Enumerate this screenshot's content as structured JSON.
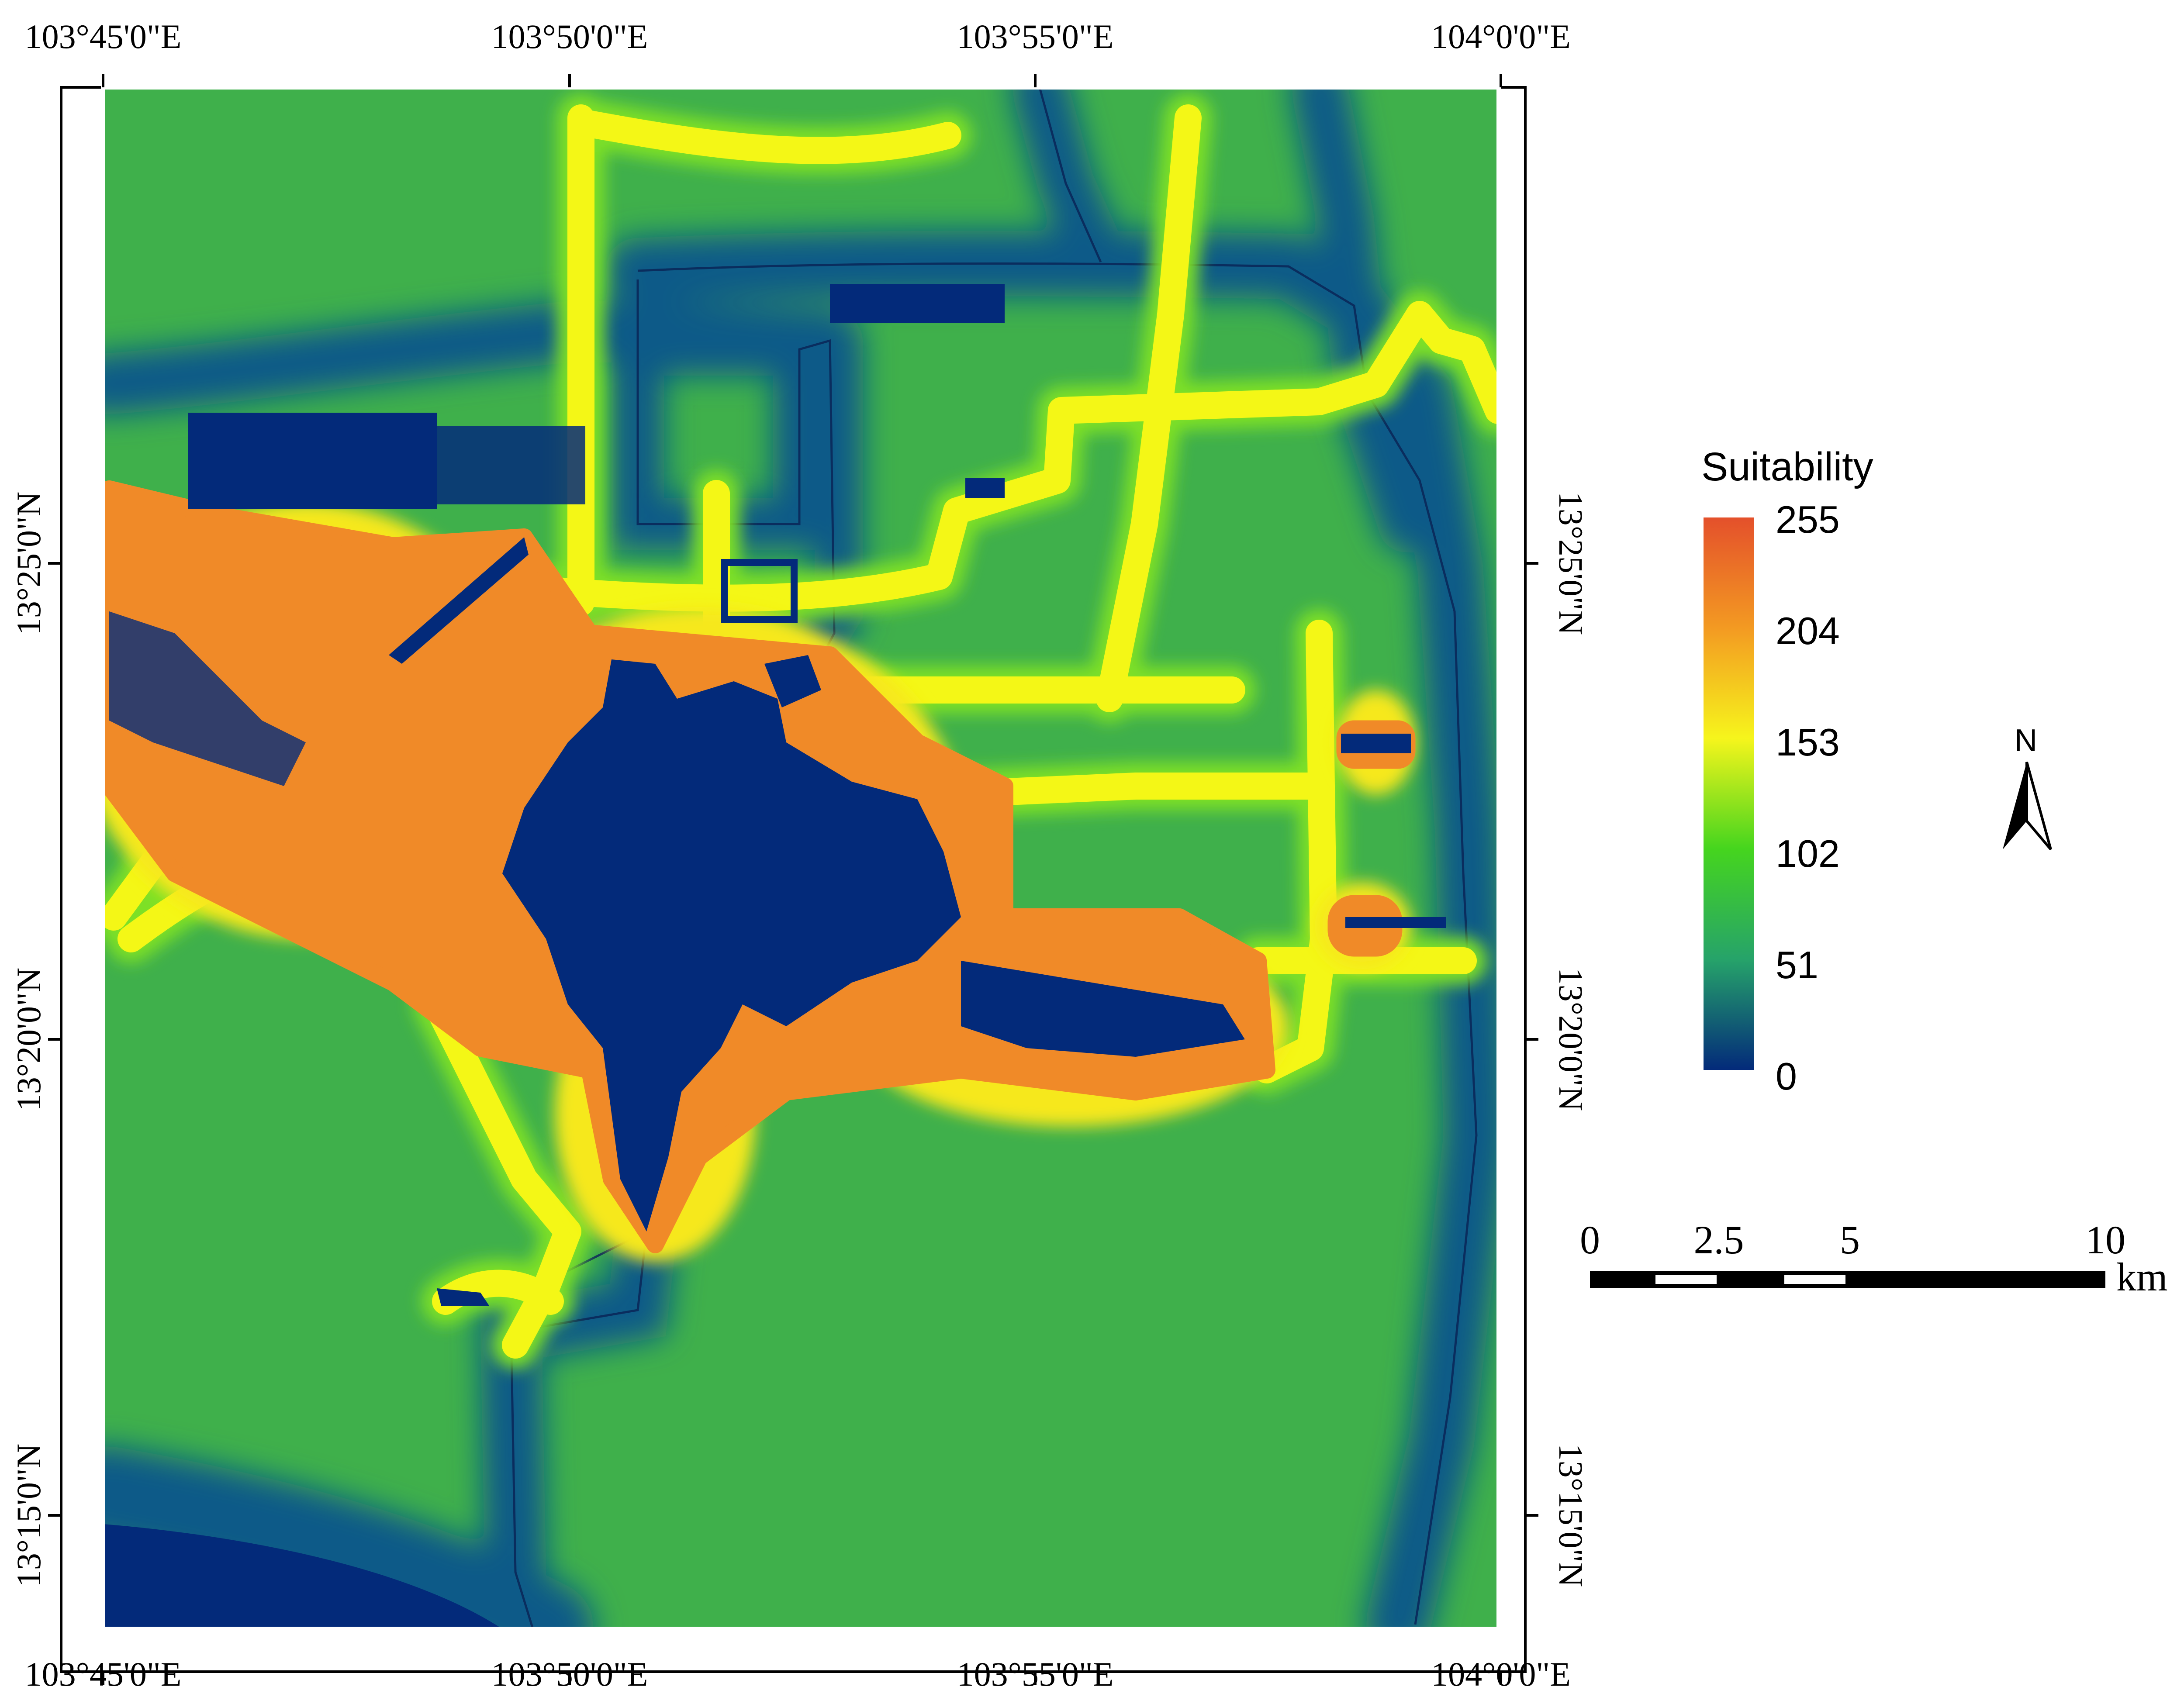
{
  "map": {
    "ticks": {
      "top": [
        "103°45'0\"E",
        "103°50'0\"E",
        "103°55'0\"E",
        "104°0'0\"E"
      ],
      "bottom": [
        "103°45'0\"E",
        "103°50'0\"E",
        "103°55'0\"E",
        "104°0'0\"E"
      ],
      "left": [
        "13°25'0\"N",
        "13°20'0\"N",
        "13°15'0\"N"
      ],
      "right": [
        "13°25'0\"N",
        "13°20'0\"N",
        "13°15'0\"N"
      ]
    },
    "colors": {
      "background": "#3fb04b",
      "water": "#032a7a",
      "buffer_low": "#0f5a88",
      "road": "#f4f716",
      "urban_orange": "#f08a28"
    }
  },
  "legend": {
    "title": "Suitability",
    "labels": [
      "255",
      "204",
      "153",
      "102",
      "51",
      "0"
    ],
    "colors": [
      "#e4502b",
      "#f39a22",
      "#f6f51c",
      "#45d51e",
      "#26a36a",
      "#032a7a"
    ]
  },
  "north_arrow": {
    "label": "N"
  },
  "scale_bar": {
    "labels": [
      "0",
      "2.5",
      "5",
      "10"
    ],
    "unit": "km"
  }
}
